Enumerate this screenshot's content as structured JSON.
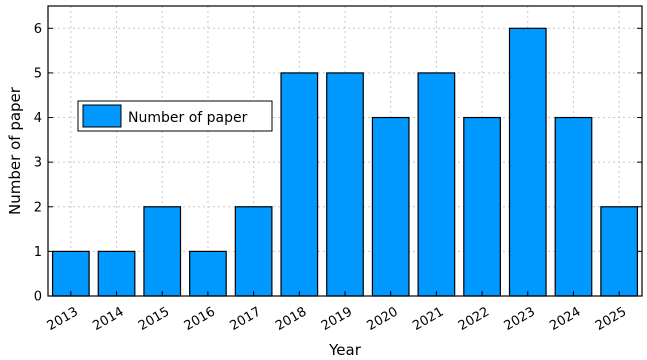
{
  "chart_data": {
    "type": "bar",
    "title": "",
    "xlabel": "Year",
    "ylabel": "Number of paper",
    "categories": [
      "2013",
      "2014",
      "2015",
      "2016",
      "2017",
      "2018",
      "2019",
      "2020",
      "2021",
      "2022",
      "2023",
      "2024",
      "2025"
    ],
    "series": [
      {
        "name": "Number of paper",
        "values": [
          1,
          1,
          2,
          1,
          2,
          5,
          5,
          4,
          5,
          4,
          6,
          4,
          2
        ],
        "color": "#0099ff"
      }
    ],
    "ylim": [
      0,
      6.5
    ],
    "yticks": [
      "0",
      "1",
      "2",
      "3",
      "4",
      "5",
      "6"
    ],
    "grid": true,
    "legend_position": "center-left",
    "bar_edge_color": "#000000"
  }
}
